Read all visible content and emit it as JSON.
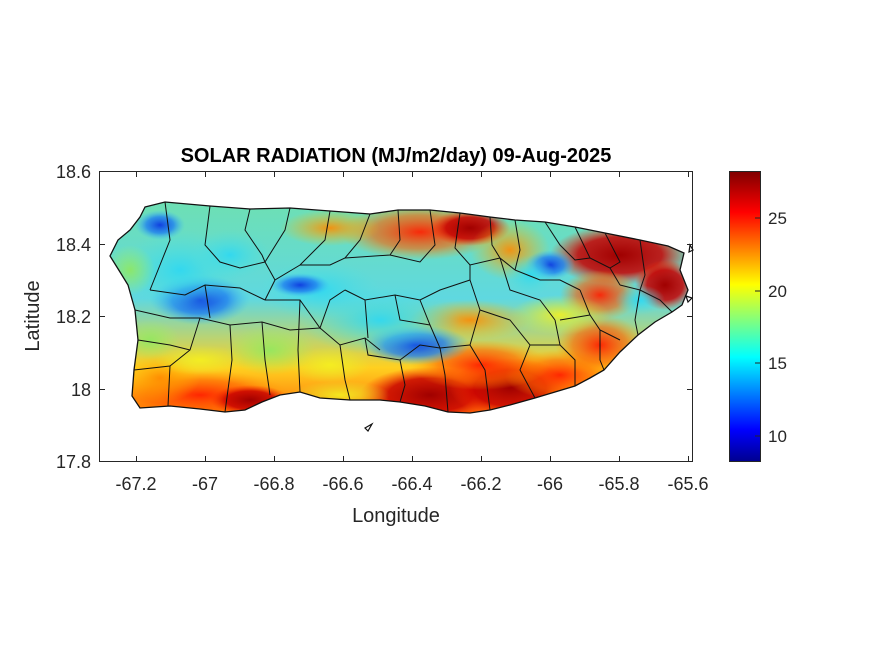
{
  "map": {
    "title": "SOLAR RADIATION (MJ/m2/day) 09-Aug-2025",
    "xlabel": "Longitude",
    "ylabel": "Latitude",
    "xlim": [
      -67.3,
      -65.58
    ],
    "ylim": [
      17.8,
      18.6
    ],
    "xticks": [
      -67.2,
      -67,
      -66.8,
      -66.6,
      -66.4,
      -66.2,
      -66,
      -65.8,
      -65.6
    ],
    "xtick_labels": [
      "-67.2",
      "-67",
      "-66.8",
      "-66.6",
      "-66.4",
      "-66.2",
      "-66",
      "-65.8",
      "-65.6"
    ],
    "yticks": [
      18.6,
      18.4,
      18.2,
      18.0,
      17.8
    ],
    "ytick_labels": [
      "18.6",
      "18.4",
      "18.2",
      "18",
      "17.8"
    ],
    "region": "Puerto Rico",
    "colormap": "jet",
    "colorbar": {
      "range": [
        8,
        28
      ],
      "ticks": [
        10,
        15,
        20,
        25
      ],
      "tick_labels": [
        "10",
        "15",
        "20",
        "25"
      ]
    },
    "colors": {
      "dark_red": "#800000",
      "red": "#ff0000",
      "yellow": "#ffff00",
      "cyan": "#00ffff",
      "blue": "#0000ff",
      "dark_blue": "#00008f",
      "boundary": "#000000"
    },
    "field_regions": [
      {
        "name": "northwest-interior-low",
        "lon": -67.0,
        "lat": 18.3,
        "value": 14
      },
      {
        "name": "west-central-low",
        "lon": -67.05,
        "lat": 18.2,
        "value": 12
      },
      {
        "name": "central-low",
        "lon": -66.38,
        "lat": 18.13,
        "value": 11
      },
      {
        "name": "el-yunque-low",
        "lon": -66.0,
        "lat": 18.35,
        "value": 11
      },
      {
        "name": "northeast-high",
        "lon": -65.8,
        "lat": 18.4,
        "value": 27
      },
      {
        "name": "south-coast-high",
        "lon": -66.3,
        "lat": 18.0,
        "value": 27
      },
      {
        "name": "southwest-high",
        "lon": -67.0,
        "lat": 17.98,
        "value": 25
      },
      {
        "name": "north-central-high",
        "lon": -66.4,
        "lat": 18.45,
        "value": 26
      }
    ]
  }
}
